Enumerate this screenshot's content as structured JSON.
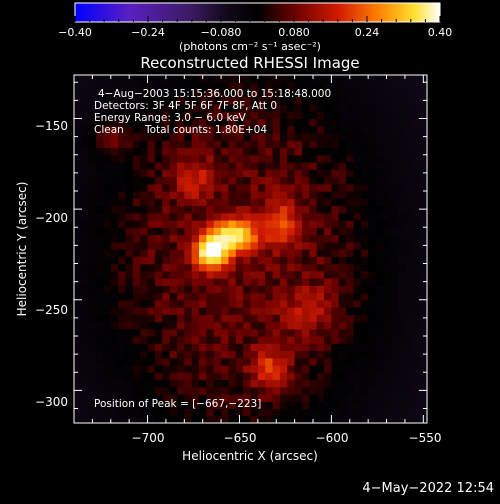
{
  "chart_data": {
    "type": "heatmap",
    "title": "Reconstructed RHESSI Image",
    "xlabel": "Heliocentric X (arcsec)",
    "ylabel": "Heliocentric Y (arcsec)",
    "xlim": [
      -740,
      -548
    ],
    "ylim": [
      -318,
      -126
    ],
    "x_ticks": [
      -700,
      -650,
      -600,
      -550
    ],
    "y_ticks": [
      -150,
      -200,
      -250,
      -300
    ],
    "x_tick_labels": [
      "−700",
      "−650",
      "−600",
      "−550"
    ],
    "y_tick_labels": [
      "−150",
      "−200",
      "−250",
      "−300"
    ],
    "grid": false,
    "colorbar": {
      "range": [
        -0.4,
        0.4
      ],
      "tick_values": [
        -0.4,
        -0.24,
        -0.08,
        0.08,
        0.24,
        0.4
      ],
      "tick_labels": [
        "−0.40",
        "−0.24",
        "−0.080",
        "0.080",
        "0.24",
        "0.40"
      ],
      "units_label": "(photons cm⁻² s⁻¹ asec⁻²)",
      "colormap": "thermal: blue → purple → black → red → orange → yellow → white"
    },
    "annotations": {
      "time_range": "4−Aug−2003 15:15:36.000 to 15:18:48.000",
      "detectors": "Detectors: 3F 4F 5F 6F 7F 8F, Att 0",
      "energy_range": "Energy Range: 3.0 − 6.0 keV",
      "method": "Clean",
      "total_counts": "Total counts: 1.80E+04",
      "peak": "Position of Peak = [−667,−223]"
    },
    "peak_position": [
      -667,
      -223
    ],
    "sources": [
      {
        "x": -665,
        "y": -223,
        "sx": 6,
        "sy": 6,
        "amp": 0.34
      },
      {
        "x": -653,
        "y": -214,
        "sx": 8,
        "sy": 6,
        "amp": 0.25
      },
      {
        "x": -628,
        "y": -208,
        "sx": 7,
        "sy": 9,
        "amp": 0.1
      },
      {
        "x": -675,
        "y": -183,
        "sx": 8,
        "sy": 8,
        "amp": 0.07
      },
      {
        "x": -720,
        "y": -160,
        "sx": 8,
        "sy": 7,
        "amp": 0.06
      },
      {
        "x": -633,
        "y": -288,
        "sx": 7,
        "sy": 8,
        "amp": 0.1
      },
      {
        "x": -612,
        "y": -255,
        "sx": 10,
        "sy": 9,
        "amp": 0.06
      }
    ]
  },
  "footer": {
    "date": "4−May−2022 12:54"
  },
  "colors": {
    "background": "#000000",
    "text": "#ffffff",
    "negative_end": "#0000ff",
    "positive_end": "#ffffff"
  }
}
